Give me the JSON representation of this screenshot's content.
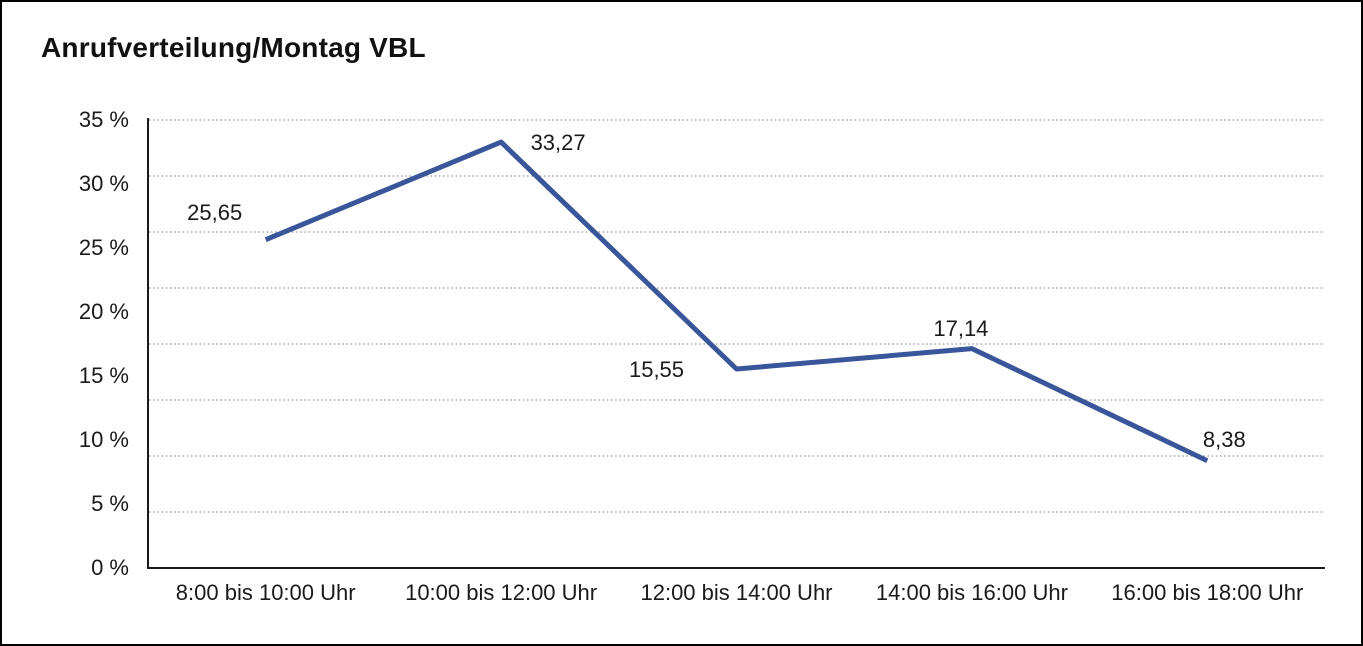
{
  "title": "Anrufverteilung/Montag VBL",
  "chart_data": {
    "type": "line",
    "title": "Anrufverteilung/Montag VBL",
    "categories": [
      "8:00 bis 10:00 Uhr",
      "10:00 bis 12:00 Uhr",
      "12:00 bis 14:00 Uhr",
      "14:00 bis 16:00 Uhr",
      "16:00 bis 18:00 Uhr"
    ],
    "values": [
      25.65,
      33.27,
      15.55,
      17.14,
      8.38
    ],
    "value_labels": [
      "25,65",
      "33,27",
      "15,55",
      "17,14",
      "8,38"
    ],
    "y_ticks": [
      "35 %",
      "30 %",
      "25 %",
      "20 %",
      "15 %",
      "10 %",
      "5 %",
      "0 %"
    ],
    "y_tick_values": [
      35,
      30,
      25,
      20,
      15,
      10,
      5,
      0
    ],
    "ylim": [
      0,
      35
    ],
    "xlabel": "",
    "ylabel": "",
    "legend": "none",
    "grid": "horizontal-dotted",
    "grid_intervals": 8,
    "line_color": "#3A569B",
    "grid_color": "#999999",
    "axis_color": "#1a1a1a",
    "text_color": "#1a1a1a"
  }
}
